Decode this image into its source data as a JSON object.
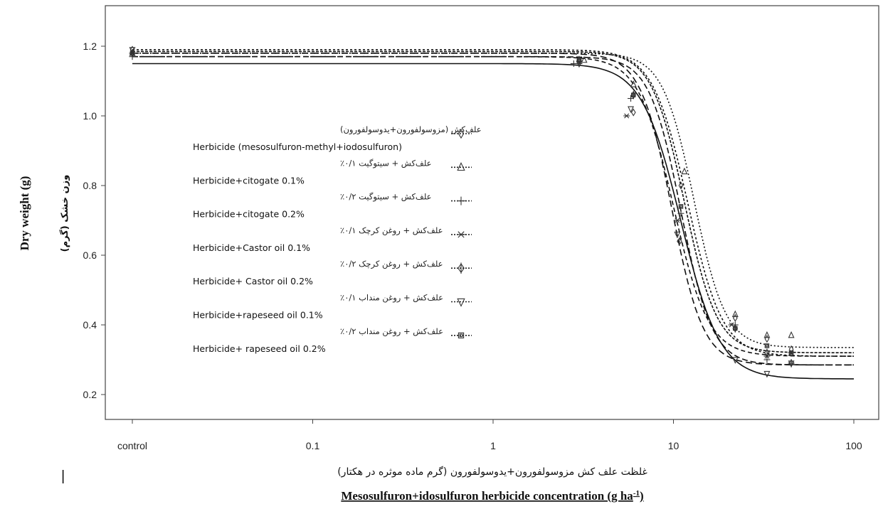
{
  "chart_data": {
    "type": "line",
    "x_scale": "log",
    "xlim": [
      0.01,
      100
    ],
    "ylim": [
      0.17,
      1.3
    ],
    "x_ticks": [
      {
        "x": 0.01,
        "label": "control"
      },
      {
        "x": 0.1,
        "label": "0.1"
      },
      {
        "x": 1,
        "label": "1"
      },
      {
        "x": 10,
        "label": "10"
      },
      {
        "x": 100,
        "label": "100"
      }
    ],
    "y_ticks": [
      0.2,
      0.4,
      0.6,
      0.8,
      1.0,
      1.2
    ],
    "y_tick_labels": [
      "0.2",
      "0.4",
      "0.6",
      "0.8",
      "1.0",
      "1.2"
    ],
    "xlabel": "Mesosulfuron+idosulfuron herbicide concentration (g ha-1)",
    "xlabel_fa": "غلظت علف کش مزوسولفورون+یدوسولفورون (گرم ماده موثره در هکتار)",
    "ylabel": "Dry weight (g)",
    "ylabel_fa": "وزن خشک (گرم)",
    "grid": false,
    "legend_position": "center-left",
    "series": [
      {
        "name": "Herbicide (mesosulfuron-methyl+iodosulfuron)",
        "name_fa": "علف‌کش (مزوسولفورون+یدوسولفورون)",
        "marker": "diamond",
        "dash": "3,3",
        "curve": {
          "upper": 1.19,
          "lower": 0.31,
          "ed50": 12,
          "slope": 4.5
        },
        "points": [
          [
            0.01,
            1.19
          ],
          [
            3,
            1.16
          ],
          [
            6,
            1.01
          ],
          [
            11,
            0.8
          ],
          [
            22,
            0.42
          ],
          [
            33,
            0.36
          ],
          [
            45,
            0.33
          ]
        ]
      },
      {
        "name": "Herbicide+citogate 0.1%",
        "name_fa": "علف‌کش + سیتوگیت ۰/۱٪",
        "marker": "triangle",
        "dash": "2,3",
        "curve": {
          "upper": 1.18,
          "lower": 0.335,
          "ed50": 13,
          "slope": 5
        },
        "points": [
          [
            0.01,
            1.18
          ],
          [
            3.2,
            1.16
          ],
          [
            6,
            1.09
          ],
          [
            11.5,
            0.84
          ],
          [
            22,
            0.43
          ],
          [
            33,
            0.37
          ],
          [
            45,
            0.37
          ]
        ]
      },
      {
        "name": "Herbicide+citogate 0.2%",
        "name_fa": "علف‌کش + سیتوگیت ۰/۲٪",
        "marker": "plus",
        "dash": "",
        "curve": {
          "upper": 1.15,
          "lower": 0.245,
          "ed50": 11,
          "slope": 4
        },
        "points": [
          [
            0.01,
            1.17
          ],
          [
            2.8,
            1.15
          ],
          [
            5.8,
            1.05
          ],
          [
            11,
            0.72
          ],
          [
            22,
            0.4
          ],
          [
            33,
            0.3
          ],
          [
            45,
            0.29
          ]
        ]
      },
      {
        "name": "Herbicide+Castor oil 0.1%",
        "name_fa": "علف‌کش + روغن کرچک ۰/۱٪",
        "marker": "star",
        "dash": "6,4",
        "curve": {
          "upper": 1.17,
          "lower": 0.31,
          "ed50": 10,
          "slope": 4.5
        },
        "points": [
          [
            0.01,
            1.18
          ],
          [
            3,
            1.15
          ],
          [
            5.5,
            1.0
          ],
          [
            10.5,
            0.7
          ],
          [
            21,
            0.4
          ],
          [
            33,
            0.31
          ],
          [
            45,
            0.32
          ]
        ]
      },
      {
        "name": "Herbicide+ Castor oil 0.2%",
        "name_fa": "علف‌کش + روغن کرچک ۰/۲٪",
        "marker": "diamond-open",
        "dash": "8,4",
        "curve": {
          "upper": 1.17,
          "lower": 0.285,
          "ed50": 11,
          "slope": 5
        },
        "points": [
          [
            0.01,
            1.18
          ],
          [
            3,
            1.16
          ],
          [
            6,
            1.06
          ],
          [
            10.8,
            0.64
          ],
          [
            22,
            0.39
          ],
          [
            33,
            0.32
          ],
          [
            45,
            0.29
          ]
        ]
      },
      {
        "name": "Herbicide+rapeseed oil 0.1%",
        "name_fa": "علف‌کش + روغن منداب ۰/۱٪",
        "marker": "triangle-down",
        "dash": "9,5",
        "curve": {
          "upper": 1.18,
          "lower": 0.285,
          "ed50": 9.8,
          "slope": 5
        },
        "points": [
          [
            0.01,
            1.19
          ],
          [
            3,
            1.15
          ],
          [
            5.8,
            1.02
          ],
          [
            10.5,
            0.66
          ],
          [
            22,
            0.3
          ],
          [
            33,
            0.26
          ],
          [
            45,
            0.29
          ]
        ]
      },
      {
        "name": "Herbicide+ rapeseed oil 0.2%",
        "name_fa": "علف‌کش + روغن منداب ۰/۲٪",
        "marker": "square",
        "dash": "4,2",
        "curve": {
          "upper": 1.185,
          "lower": 0.32,
          "ed50": 11.5,
          "slope": 4.8
        },
        "points": [
          [
            0.01,
            1.18
          ],
          [
            3,
            1.16
          ],
          [
            6,
            1.06
          ],
          [
            11,
            0.74
          ],
          [
            22,
            0.39
          ],
          [
            33,
            0.34
          ],
          [
            45,
            0.32
          ]
        ]
      }
    ]
  },
  "page_marker": "|"
}
